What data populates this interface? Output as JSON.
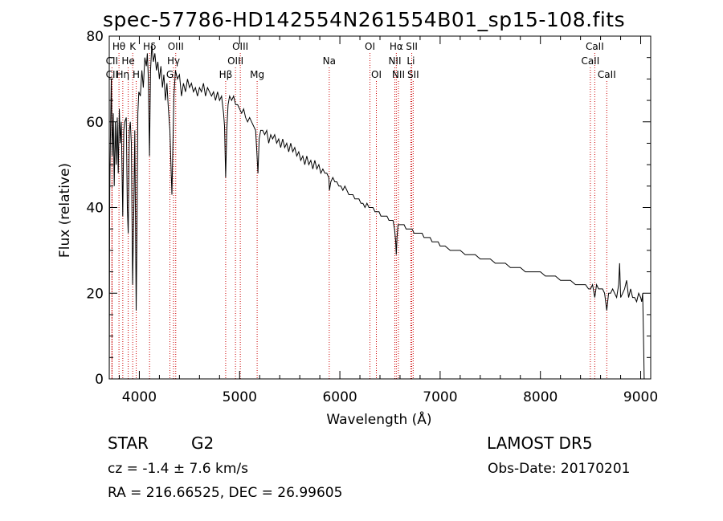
{
  "header": {
    "title": "spec-57786-HD142554N261554B01_sp15-108.fits"
  },
  "info": {
    "class": "STAR",
    "subclass": "G2",
    "survey": "LAMOST DR5",
    "cz": "cz = -1.4 ± 7.6 km/s",
    "obs_date": "Obs-Date: 20170201",
    "radec": "RA = 216.66525, DEC =  26.99605"
  },
  "chart_data": {
    "type": "line",
    "title": "spec-57786-HD142554N261554B01_sp15-108.fits",
    "xlabel": "Wavelength (Å)",
    "ylabel": "Flux (relative)",
    "xlim": [
      3700,
      9100
    ],
    "ylim": [
      0,
      80
    ],
    "xticks": [
      4000,
      5000,
      6000,
      7000,
      8000,
      9000
    ],
    "yticks": [
      0,
      20,
      40,
      60,
      80
    ],
    "grid": false,
    "line_color": "#000000",
    "marker_color": "#cc0000",
    "series": [
      {
        "points": [
          [
            3700,
            0
          ],
          [
            3705,
            44
          ],
          [
            3712,
            57
          ],
          [
            3720,
            70
          ],
          [
            3730,
            52
          ],
          [
            3740,
            62
          ],
          [
            3750,
            45
          ],
          [
            3760,
            60
          ],
          [
            3770,
            50
          ],
          [
            3780,
            61
          ],
          [
            3790,
            48
          ],
          [
            3800,
            63
          ],
          [
            3810,
            55
          ],
          [
            3820,
            60
          ],
          [
            3835,
            38
          ],
          [
            3845,
            58
          ],
          [
            3855,
            60
          ],
          [
            3870,
            61
          ],
          [
            3880,
            40
          ],
          [
            3889,
            34
          ],
          [
            3900,
            58
          ],
          [
            3910,
            60
          ],
          [
            3920,
            55
          ],
          [
            3933,
            22
          ],
          [
            3945,
            40
          ],
          [
            3955,
            58
          ],
          [
            3968,
            16
          ],
          [
            3975,
            30
          ],
          [
            3985,
            62
          ],
          [
            3995,
            67
          ],
          [
            4010,
            66
          ],
          [
            4025,
            72
          ],
          [
            4040,
            68
          ],
          [
            4055,
            75
          ],
          [
            4070,
            73
          ],
          [
            4080,
            76
          ],
          [
            4090,
            70
          ],
          [
            4101,
            52
          ],
          [
            4112,
            72
          ],
          [
            4125,
            78
          ],
          [
            4140,
            74
          ],
          [
            4155,
            76
          ],
          [
            4170,
            72
          ],
          [
            4185,
            74
          ],
          [
            4200,
            70
          ],
          [
            4215,
            73
          ],
          [
            4230,
            68
          ],
          [
            4245,
            71
          ],
          [
            4260,
            65
          ],
          [
            4275,
            69
          ],
          [
            4290,
            63
          ],
          [
            4305,
            58
          ],
          [
            4315,
            50
          ],
          [
            4325,
            43
          ],
          [
            4335,
            55
          ],
          [
            4345,
            66
          ],
          [
            4360,
            72
          ],
          [
            4380,
            70
          ],
          [
            4400,
            71
          ],
          [
            4420,
            66
          ],
          [
            4440,
            69
          ],
          [
            4460,
            67
          ],
          [
            4480,
            70
          ],
          [
            4500,
            68
          ],
          [
            4520,
            69
          ],
          [
            4540,
            67
          ],
          [
            4560,
            68
          ],
          [
            4580,
            66
          ],
          [
            4600,
            68
          ],
          [
            4620,
            67
          ],
          [
            4640,
            69
          ],
          [
            4660,
            66
          ],
          [
            4680,
            68
          ],
          [
            4700,
            67
          ],
          [
            4720,
            66
          ],
          [
            4740,
            67
          ],
          [
            4760,
            65
          ],
          [
            4780,
            67
          ],
          [
            4800,
            65
          ],
          [
            4820,
            66
          ],
          [
            4840,
            62
          ],
          [
            4850,
            59
          ],
          [
            4861,
            47
          ],
          [
            4872,
            58
          ],
          [
            4885,
            64
          ],
          [
            4900,
            66
          ],
          [
            4920,
            65
          ],
          [
            4940,
            66
          ],
          [
            4960,
            64
          ],
          [
            4980,
            64
          ],
          [
            5000,
            63
          ],
          [
            5020,
            62
          ],
          [
            5040,
            63
          ],
          [
            5060,
            61
          ],
          [
            5080,
            60
          ],
          [
            5100,
            61
          ],
          [
            5120,
            60
          ],
          [
            5140,
            59
          ],
          [
            5160,
            58
          ],
          [
            5172,
            53
          ],
          [
            5183,
            48
          ],
          [
            5195,
            56
          ],
          [
            5210,
            58
          ],
          [
            5230,
            58
          ],
          [
            5250,
            57
          ],
          [
            5270,
            58
          ],
          [
            5290,
            55
          ],
          [
            5310,
            57
          ],
          [
            5330,
            56
          ],
          [
            5350,
            57
          ],
          [
            5370,
            55
          ],
          [
            5390,
            56
          ],
          [
            5410,
            54
          ],
          [
            5430,
            56
          ],
          [
            5450,
            54
          ],
          [
            5470,
            55
          ],
          [
            5490,
            53
          ],
          [
            5510,
            55
          ],
          [
            5530,
            53
          ],
          [
            5550,
            54
          ],
          [
            5570,
            52
          ],
          [
            5590,
            53
          ],
          [
            5610,
            51
          ],
          [
            5630,
            52
          ],
          [
            5650,
            50
          ],
          [
            5670,
            52
          ],
          [
            5690,
            50
          ],
          [
            5710,
            51
          ],
          [
            5730,
            49
          ],
          [
            5750,
            51
          ],
          [
            5770,
            49
          ],
          [
            5790,
            50
          ],
          [
            5810,
            48
          ],
          [
            5830,
            49
          ],
          [
            5850,
            48
          ],
          [
            5870,
            48
          ],
          [
            5890,
            47
          ],
          [
            5896,
            44
          ],
          [
            5910,
            46
          ],
          [
            5930,
            47
          ],
          [
            5950,
            46
          ],
          [
            5970,
            46
          ],
          [
            5990,
            45
          ],
          [
            6010,
            45
          ],
          [
            6030,
            44
          ],
          [
            6050,
            45
          ],
          [
            6070,
            44
          ],
          [
            6090,
            43
          ],
          [
            6110,
            43
          ],
          [
            6130,
            43
          ],
          [
            6150,
            42
          ],
          [
            6170,
            42
          ],
          [
            6190,
            42
          ],
          [
            6210,
            41
          ],
          [
            6230,
            41
          ],
          [
            6250,
            40
          ],
          [
            6270,
            41
          ],
          [
            6290,
            40
          ],
          [
            6310,
            40
          ],
          [
            6330,
            40
          ],
          [
            6350,
            39
          ],
          [
            6370,
            39
          ],
          [
            6390,
            39
          ],
          [
            6410,
            38
          ],
          [
            6430,
            38
          ],
          [
            6450,
            38
          ],
          [
            6470,
            38
          ],
          [
            6490,
            37
          ],
          [
            6510,
            37
          ],
          [
            6530,
            37
          ],
          [
            6545,
            35
          ],
          [
            6557,
            32
          ],
          [
            6563,
            29
          ],
          [
            6570,
            33
          ],
          [
            6580,
            36
          ],
          [
            6600,
            36
          ],
          [
            6620,
            36
          ],
          [
            6640,
            36
          ],
          [
            6660,
            35
          ],
          [
            6680,
            35
          ],
          [
            6700,
            35
          ],
          [
            6720,
            35
          ],
          [
            6740,
            34
          ],
          [
            6760,
            34
          ],
          [
            6780,
            34
          ],
          [
            6800,
            34
          ],
          [
            6820,
            34
          ],
          [
            6840,
            33
          ],
          [
            6860,
            33
          ],
          [
            6880,
            33
          ],
          [
            6900,
            33
          ],
          [
            6920,
            32
          ],
          [
            6940,
            32
          ],
          [
            6960,
            32
          ],
          [
            6980,
            32
          ],
          [
            7000,
            31
          ],
          [
            7050,
            31
          ],
          [
            7100,
            30
          ],
          [
            7150,
            30
          ],
          [
            7200,
            30
          ],
          [
            7250,
            29
          ],
          [
            7300,
            29
          ],
          [
            7350,
            29
          ],
          [
            7400,
            28
          ],
          [
            7450,
            28
          ],
          [
            7500,
            28
          ],
          [
            7550,
            27
          ],
          [
            7600,
            27
          ],
          [
            7650,
            27
          ],
          [
            7700,
            26
          ],
          [
            7750,
            26
          ],
          [
            7800,
            26
          ],
          [
            7850,
            25
          ],
          [
            7900,
            25
          ],
          [
            7950,
            25
          ],
          [
            8000,
            25
          ],
          [
            8050,
            24
          ],
          [
            8100,
            24
          ],
          [
            8150,
            24
          ],
          [
            8200,
            23
          ],
          [
            8250,
            23
          ],
          [
            8300,
            23
          ],
          [
            8350,
            22
          ],
          [
            8400,
            22
          ],
          [
            8450,
            22
          ],
          [
            8480,
            21
          ],
          [
            8500,
            21
          ],
          [
            8520,
            22
          ],
          [
            8542,
            19
          ],
          [
            8560,
            22
          ],
          [
            8580,
            21
          ],
          [
            8600,
            21
          ],
          [
            8620,
            21
          ],
          [
            8640,
            20
          ],
          [
            8662,
            16
          ],
          [
            8680,
            20
          ],
          [
            8700,
            20
          ],
          [
            8720,
            21
          ],
          [
            8740,
            20
          ],
          [
            8760,
            19
          ],
          [
            8780,
            22
          ],
          [
            8790,
            27
          ],
          [
            8800,
            19
          ],
          [
            8820,
            20
          ],
          [
            8840,
            21
          ],
          [
            8860,
            23
          ],
          [
            8880,
            19
          ],
          [
            8900,
            21
          ],
          [
            8920,
            19
          ],
          [
            8940,
            19
          ],
          [
            8960,
            18
          ],
          [
            8980,
            20
          ],
          [
            9000,
            19
          ],
          [
            9010,
            18
          ],
          [
            9020,
            20
          ],
          [
            9030,
            7
          ],
          [
            9035,
            0
          ]
        ]
      }
    ],
    "lines": [
      {
        "label": "Hθ",
        "x": 3797,
        "row": 0
      },
      {
        "label": "CII",
        "x": 3727,
        "row": 1
      },
      {
        "label": "CII",
        "x": 3727,
        "row": 2
      },
      {
        "label": "K",
        "x": 3934,
        "row": 0
      },
      {
        "label": "He",
        "x": 3889,
        "row": 1
      },
      {
        "label": "Hη",
        "x": 3835,
        "row": 2
      },
      {
        "label": "H",
        "x": 3969,
        "row": 2
      },
      {
        "label": "Hδ",
        "x": 4102,
        "row": 0
      },
      {
        "label": "OIII",
        "x": 4363,
        "row": 0
      },
      {
        "label": "Hγ",
        "x": 4341,
        "row": 1
      },
      {
        "label": "G",
        "x": 4305,
        "row": 2
      },
      {
        "label": "OIII",
        "x": 5007,
        "row": 0
      },
      {
        "label": "OIII",
        "x": 4959,
        "row": 1
      },
      {
        "label": "Hβ",
        "x": 4861,
        "row": 2
      },
      {
        "label": "Mg",
        "x": 5175,
        "row": 2
      },
      {
        "label": "Na",
        "x": 5894,
        "row": 1
      },
      {
        "label": "OI",
        "x": 6300,
        "row": 0
      },
      {
        "label": "OI",
        "x": 6364,
        "row": 2
      },
      {
        "label": "Hα",
        "x": 6563,
        "row": 0
      },
      {
        "label": "NII",
        "x": 6548,
        "row": 1
      },
      {
        "label": "NII",
        "x": 6584,
        "row": 2
      },
      {
        "label": "SII",
        "x": 6717,
        "row": 0
      },
      {
        "label": "Li",
        "x": 6708,
        "row": 1
      },
      {
        "label": "SII",
        "x": 6731,
        "row": 2
      },
      {
        "label": "CaII",
        "x": 8542,
        "row": 0
      },
      {
        "label": "CaII",
        "x": 8498,
        "row": 1
      },
      {
        "label": "CaII",
        "x": 8662,
        "row": 2
      }
    ]
  }
}
